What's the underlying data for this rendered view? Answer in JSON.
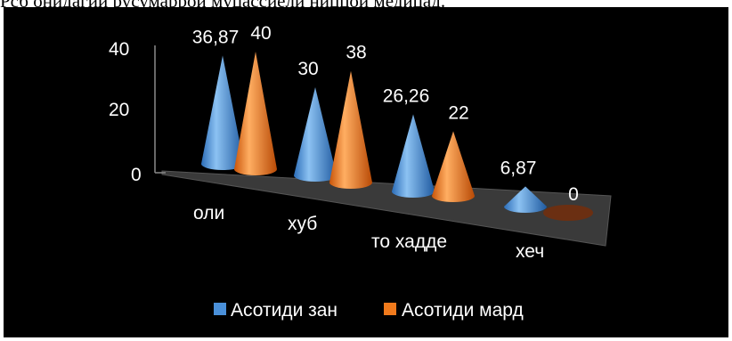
{
  "caption_fragment": "Рсб онидагии русумаррои муцассиели ниццои медицад.",
  "chart_data": {
    "type": "bar",
    "style": "3d-cone",
    "categories": [
      "оли",
      "хуб",
      "то хадде",
      "хеч"
    ],
    "series": [
      {
        "name": "Асотиди зан",
        "values": [
          36.87,
          30,
          26.26,
          6.87
        ],
        "labels": [
          "36,87",
          "30",
          "26,26",
          "6,87"
        ],
        "color": "#4a90d9"
      },
      {
        "name": "Асотиди мард",
        "values": [
          40,
          38,
          22,
          0
        ],
        "labels": [
          "40",
          "38",
          "22",
          "0"
        ],
        "color": "#f07a1c"
      }
    ],
    "yticks": [
      "0",
      "20",
      "40"
    ],
    "ylim": [
      0,
      40
    ],
    "legend_position": "bottom",
    "background": "#000000",
    "floor_color": "#3a3a3a"
  }
}
